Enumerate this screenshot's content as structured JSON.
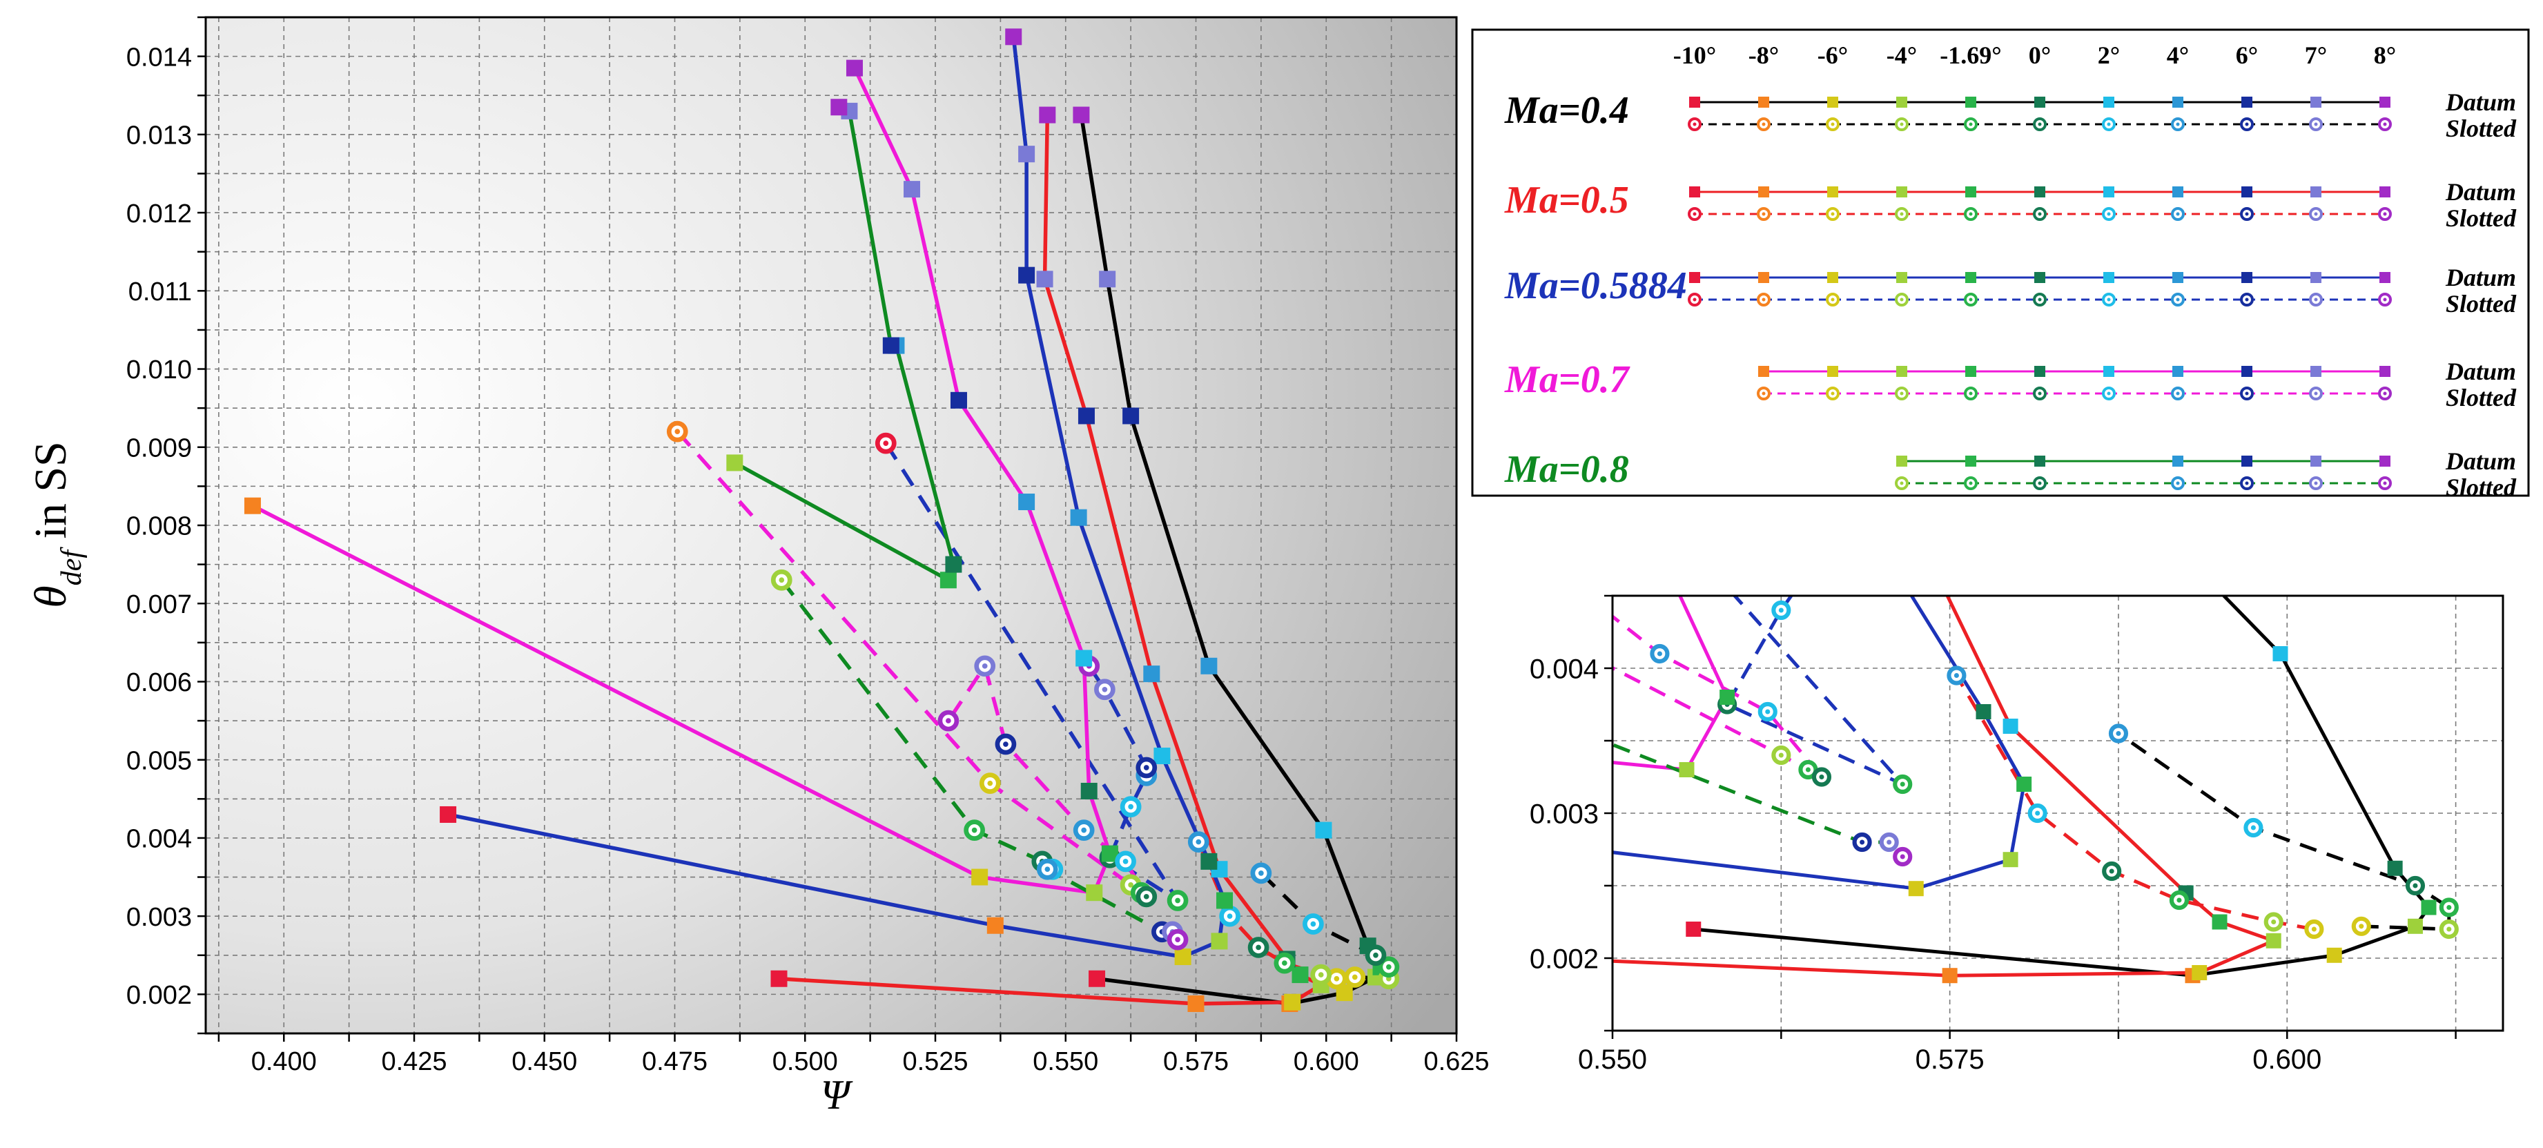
{
  "colors": {
    "angle": [
      "#e8193c",
      "#f58220",
      "#d4c818",
      "#9ed13b",
      "#29b34a",
      "#157a52",
      "#1fbde8",
      "#2c97d6",
      "#172e9e",
      "#7a7ad6",
      "#a12bc6"
    ],
    "series": {
      "ma04": "#000000",
      "ma05": "#ed2024",
      "ma0588": "#1c33b8",
      "ma07": "#f019d8",
      "ma08": "#0e8a21"
    }
  },
  "chart_data": [
    {
      "id": "main",
      "type": "line",
      "title": "",
      "xlabel": "Ψ",
      "ylabel_main": "θ",
      "ylabel_sub": "def",
      "ylabel_suffix": " in SS",
      "xlim": [
        0.385,
        0.625
      ],
      "ylim": [
        0.0015,
        0.0145
      ],
      "xticks": [
        0.4,
        0.425,
        0.45,
        0.475,
        0.5,
        0.525,
        0.55,
        0.575,
        0.6,
        0.625
      ],
      "xticklabels": [
        "0.400",
        "0.425",
        "0.450",
        "0.475",
        "0.500",
        "0.525",
        "0.550",
        "0.575",
        "0.600",
        "0.625"
      ],
      "yticks": [
        0.002,
        0.003,
        0.004,
        0.005,
        0.006,
        0.007,
        0.008,
        0.009,
        0.01,
        0.011,
        0.012,
        0.013,
        0.014
      ],
      "yticklabels": [
        "0.002",
        "0.003",
        "0.004",
        "0.005",
        "0.006",
        "0.007",
        "0.008",
        "0.009",
        "0.010",
        "0.011",
        "0.012",
        "0.013",
        "0.014"
      ],
      "grid": true,
      "angles": [
        "-10°",
        "-8°",
        "-6°",
        "-4°",
        "-1.69°",
        "0°",
        "2°",
        "4°",
        "6°",
        "7°",
        "8°"
      ],
      "series": [
        {
          "name": "Ma=0.4 Datum",
          "color_key": "ma04",
          "style": "solid",
          "marker": "square",
          "angle_idx": [
            0,
            1,
            2,
            3,
            4,
            5,
            6,
            7,
            8,
            9,
            10
          ],
          "x": [
            0.556,
            0.593,
            0.6035,
            0.6095,
            0.6105,
            0.608,
            0.5995,
            0.5775,
            0.5625,
            0.558,
            0.553
          ],
          "y": [
            0.0022,
            0.00188,
            0.00202,
            0.00222,
            0.00235,
            0.00262,
            0.0041,
            0.0062,
            0.0094,
            0.01115,
            0.01325
          ]
        },
        {
          "name": "Ma=0.4 Slotted",
          "color_key": "ma04",
          "style": "dashed",
          "marker": "circle",
          "angle_idx": [
            2,
            3,
            4,
            5,
            6,
            7
          ],
          "x": [
            0.6055,
            0.612,
            0.612,
            0.6095,
            0.5975,
            0.5875
          ],
          "y": [
            0.00222,
            0.0022,
            0.00235,
            0.0025,
            0.0029,
            0.00355
          ]
        },
        {
          "name": "Ma=0.5 Datum",
          "color_key": "ma05",
          "style": "solid",
          "marker": "square",
          "angle_idx": [
            0,
            1,
            2,
            3,
            4,
            5,
            6,
            7,
            8,
            9,
            10
          ],
          "x": [
            0.495,
            0.575,
            0.5935,
            0.599,
            0.595,
            0.5925,
            0.5795,
            0.5665,
            0.554,
            0.546,
            0.5465
          ],
          "y": [
            0.0022,
            0.00188,
            0.0019,
            0.00212,
            0.00225,
            0.00245,
            0.0036,
            0.0061,
            0.0094,
            0.01115,
            0.01325
          ]
        },
        {
          "name": "Ma=0.5 Slotted",
          "color_key": "ma05",
          "style": "dashed",
          "marker": "circle",
          "angle_idx": [
            2,
            3,
            4,
            5,
            6,
            7
          ],
          "x": [
            0.602,
            0.599,
            0.592,
            0.587,
            0.5815,
            0.5755
          ],
          "y": [
            0.0022,
            0.00225,
            0.0024,
            0.0026,
            0.003,
            0.00395
          ]
        },
        {
          "name": "Ma=0.5884 Datum",
          "color_key": "ma0588",
          "style": "solid",
          "marker": "square",
          "angle_idx": [
            0,
            1,
            2,
            3,
            4,
            5,
            6,
            7,
            8,
            9,
            10
          ],
          "x": [
            0.4315,
            0.5365,
            0.5725,
            0.5795,
            0.5805,
            0.5775,
            0.5685,
            0.5525,
            0.5425,
            0.5425,
            0.54
          ],
          "y": [
            0.0043,
            0.00288,
            0.00248,
            0.00268,
            0.0032,
            0.0037,
            0.00505,
            0.0081,
            0.0112,
            0.01275,
            0.01425
          ]
        },
        {
          "name": "Ma=0.5884 Slotted",
          "color_key": "ma0588",
          "style": "dashed",
          "marker": "circle",
          "angle_idx": [
            0,
            4,
            5,
            6,
            7,
            8,
            9,
            10
          ],
          "x": [
            0.5155,
            0.5715,
            0.5585,
            0.5625,
            0.5655,
            0.5655,
            0.5575,
            0.5545
          ],
          "y": [
            0.00905,
            0.0032,
            0.00375,
            0.0044,
            0.0048,
            0.0049,
            0.0059,
            0.0062
          ]
        },
        {
          "name": "Ma=0.7 Datum",
          "color_key": "ma07",
          "style": "solid",
          "marker": "square",
          "angle_idx": [
            1,
            2,
            3,
            4,
            5,
            6,
            7,
            8,
            9,
            10
          ],
          "x": [
            0.394,
            0.5335,
            0.5555,
            0.5585,
            0.5545,
            0.5535,
            0.5425,
            0.5295,
            0.5205,
            0.5095
          ],
          "y": [
            0.00825,
            0.0035,
            0.0033,
            0.0038,
            0.0046,
            0.0063,
            0.0083,
            0.0096,
            0.0123,
            0.01385
          ]
        },
        {
          "name": "Ma=0.7 Slotted",
          "color_key": "ma07",
          "style": "dashed",
          "marker": "circle",
          "angle_idx": [
            1,
            2,
            3,
            4,
            5,
            6,
            7,
            8,
            9,
            10
          ],
          "x": [
            0.4755,
            0.5355,
            0.5625,
            0.5645,
            0.5655,
            0.5615,
            0.5535,
            0.5385,
            0.5345,
            0.5275
          ],
          "y": [
            0.0092,
            0.0047,
            0.0034,
            0.0033,
            0.00325,
            0.0037,
            0.0041,
            0.0052,
            0.0062,
            0.0055
          ]
        },
        {
          "name": "Ma=0.8 Datum",
          "color_key": "ma08",
          "style": "solid",
          "marker": "square",
          "angle_idx": [
            3,
            4,
            5,
            6,
            7,
            8,
            9,
            10
          ],
          "x": [
            0.4865,
            0.5275,
            0.5285,
            0.5175,
            0.5175,
            0.5165,
            0.5085,
            0.5065
          ],
          "y": [
            0.0088,
            0.0073,
            0.0075,
            0.0103,
            0.0103,
            0.0103,
            0.0133,
            0.01335
          ]
        },
        {
          "name": "Ma=0.8 Slotted",
          "color_key": "ma08",
          "style": "dashed",
          "marker": "circle",
          "angle_idx": [
            3,
            4,
            5,
            6,
            7,
            8,
            9,
            10
          ],
          "x": [
            0.4955,
            0.5325,
            0.5455,
            0.5475,
            0.5465,
            0.5685,
            0.5705,
            0.5715
          ],
          "y": [
            0.0073,
            0.0041,
            0.0037,
            0.0036,
            0.0036,
            0.0028,
            0.0028,
            0.0027
          ]
        }
      ]
    },
    {
      "id": "inset",
      "type": "line",
      "title": "",
      "xlim": [
        0.55,
        0.616
      ],
      "ylim": [
        0.0015,
        0.0045
      ],
      "xticks": [
        0.55,
        0.575,
        0.6
      ],
      "xticklabels": [
        "0.550",
        "0.575",
        "0.600"
      ],
      "yticks": [
        0.002,
        0.003,
        0.004
      ],
      "yticklabels": [
        "0.002",
        "0.003",
        "0.004"
      ],
      "grid": true,
      "series_ref": "main"
    }
  ],
  "legend": {
    "angles": [
      "-10°",
      "-8°",
      "-6°",
      "-4°",
      "-1.69°",
      "0°",
      "2°",
      "4°",
      "6°",
      "7°",
      "8°"
    ],
    "datum_label": "Datum",
    "slotted_label": "Slotted",
    "rows": [
      {
        "label": "Ma=0.4",
        "color_key": "ma04",
        "start_idx": 0
      },
      {
        "label": "Ma=0.5",
        "color_key": "ma05",
        "start_idx": 0
      },
      {
        "label": "Ma=0.5884",
        "color_key": "ma0588",
        "start_idx": 0
      },
      {
        "label": "Ma=0.7",
        "color_key": "ma07",
        "start_idx": 1
      },
      {
        "label": "Ma=0.8",
        "color_key": "ma08",
        "start_idx": 3,
        "skip_idx": [
          6
        ]
      }
    ]
  }
}
